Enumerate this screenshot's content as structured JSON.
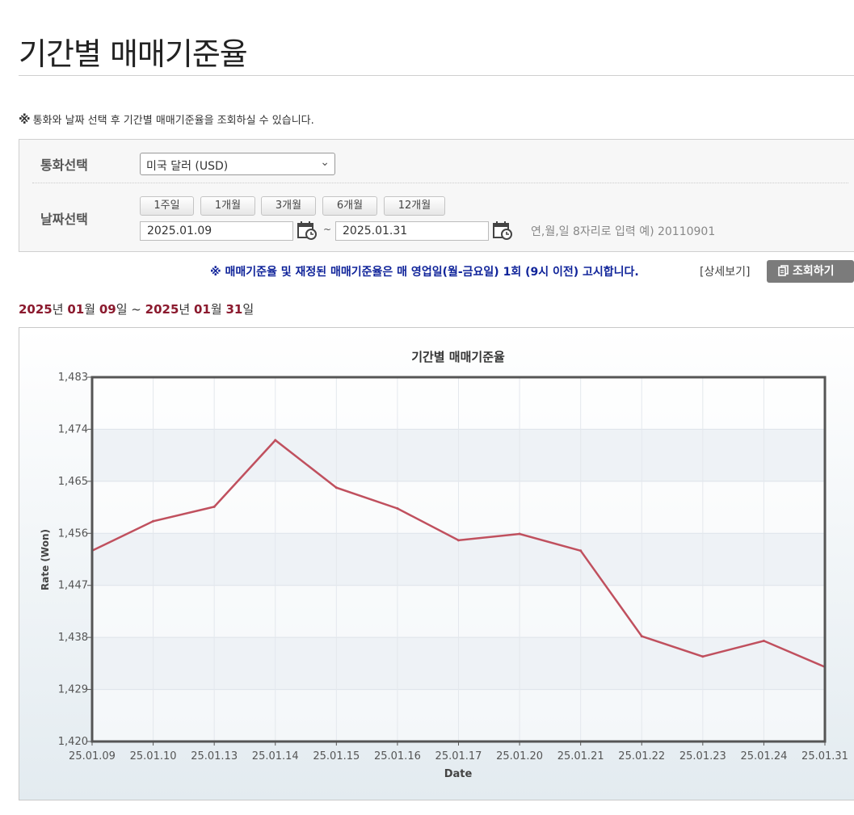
{
  "page": {
    "title": "기간별 매매기준율",
    "notice_mark": "※",
    "notice": "통화와 날짜 선택 후 기간별 매매기준율을 조회하실 수 있습니다."
  },
  "search": {
    "currency_label": "통화선택",
    "currency_value": "미국 달러 (USD)",
    "date_label": "날짜선택",
    "period_buttons": [
      "1주일",
      "1개월",
      "3개월",
      "6개월",
      "12개월"
    ],
    "start_date": "2025.01.09",
    "end_date": "2025.01.31",
    "tilde": "~",
    "date_hint": "연,월,일 8자리로 입력 예) 20110901"
  },
  "info": {
    "text": "※ 매매기준율 및 재정된 매매기준율은 매 영업일(월-금요일) 1회 (9시 이전) 고시합니다.",
    "detail_link": "[상세보기]",
    "query_button": "조회하기"
  },
  "range": {
    "y1": "2025",
    "y_unit": "년",
    "m1": "01",
    "m_unit": "월",
    "d1": "09",
    "d_unit": "일",
    "sep": "~",
    "y2": "2025",
    "m2": "01",
    "d2": "31"
  },
  "colors": {
    "line": "#c0505e",
    "info_text": "#10249a",
    "date_numbers": "#8b1a2e"
  },
  "chart_data": {
    "type": "line",
    "title": "기간별 매매기준율",
    "xlabel": "Date",
    "ylabel": "Rate (Won)",
    "ylim": [
      1420,
      1483
    ],
    "yticks": [
      1420,
      1429,
      1438,
      1447,
      1456,
      1465,
      1474,
      1483
    ],
    "ytick_labels": [
      "1,420",
      "1,429",
      "1,438",
      "1,447",
      "1,456",
      "1,465",
      "1,474",
      "1,483"
    ],
    "grid": true,
    "categories": [
      "25.01.09",
      "25.01.10",
      "25.01.13",
      "25.01.14",
      "25.01.15",
      "25.01.16",
      "25.01.17",
      "25.01.20",
      "25.01.21",
      "25.01.22",
      "25.01.23",
      "25.01.24",
      "25.01.31"
    ],
    "values": [
      1453.0,
      1458.1,
      1460.6,
      1472.1,
      1463.9,
      1460.3,
      1454.8,
      1455.9,
      1453.0,
      1438.2,
      1434.7,
      1437.4,
      1432.9
    ]
  }
}
